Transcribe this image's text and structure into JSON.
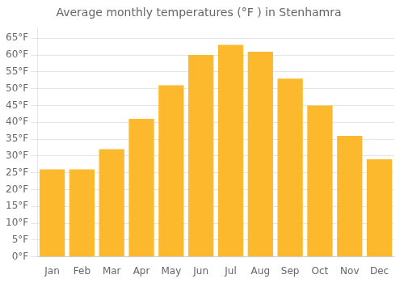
{
  "chart_data": {
    "type": "bar",
    "title": "Average monthly temperatures (°F ) in Stenhamra",
    "categories": [
      "Jan",
      "Feb",
      "Mar",
      "Apr",
      "May",
      "Jun",
      "Jul",
      "Aug",
      "Sep",
      "Oct",
      "Nov",
      "Dec"
    ],
    "values": [
      26,
      26,
      32,
      41,
      51,
      60,
      63,
      61,
      53,
      45,
      36,
      29
    ],
    "color": "#FDB92E",
    "ylim": [
      0,
      68
    ],
    "yticks": [
      {
        "value": 0,
        "label": "0°F"
      },
      {
        "value": 5,
        "label": "5°F"
      },
      {
        "value": 10,
        "label": "10°F"
      },
      {
        "value": 15,
        "label": "15°F"
      },
      {
        "value": 20,
        "label": "20°F"
      },
      {
        "value": 25,
        "label": "25°F"
      },
      {
        "value": 30,
        "label": "30°F"
      },
      {
        "value": 35,
        "label": "35°F"
      },
      {
        "value": 40,
        "label": "40°F"
      },
      {
        "value": 45,
        "label": "45°F"
      },
      {
        "value": 50,
        "label": "50°F"
      },
      {
        "value": 55,
        "label": "55°F"
      },
      {
        "value": 60,
        "label": "60°F"
      },
      {
        "value": 65,
        "label": "65°F"
      }
    ],
    "grid": true
  }
}
